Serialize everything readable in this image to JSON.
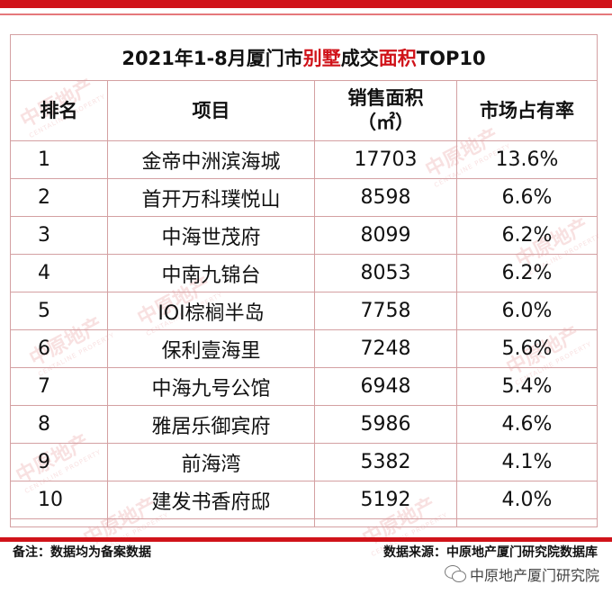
{
  "title": {
    "part1": "2021年1-8月厦门市",
    "part2": "别墅",
    "part3": "成交",
    "part4": "面积",
    "part5": "TOP10"
  },
  "headers": {
    "rank": "排名",
    "project": "项目",
    "area": "销售面积",
    "unit": "（㎡）",
    "share": "市场占有率"
  },
  "rows": [
    {
      "rank": "1",
      "project": "金帝中洲滨海城",
      "area": "17703",
      "share": "13.6%"
    },
    {
      "rank": "2",
      "project": "首开万科璞悦山",
      "area": "8598",
      "share": "6.6%"
    },
    {
      "rank": "3",
      "project": "中海世茂府",
      "area": "8099",
      "share": "6.2%"
    },
    {
      "rank": "4",
      "project": "中南九锦台",
      "area": "8053",
      "share": "6.2%"
    },
    {
      "rank": "5",
      "project": "IOI棕榈半岛",
      "area": "7758",
      "share": "6.0%"
    },
    {
      "rank": "6",
      "project": "保利壹海里",
      "area": "7248",
      "share": "5.6%"
    },
    {
      "rank": "7",
      "project": "中海九号公馆",
      "area": "6948",
      "share": "5.4%"
    },
    {
      "rank": "8",
      "project": "雅居乐御宾府",
      "area": "5986",
      "share": "4.6%"
    },
    {
      "rank": "9",
      "project": "前海湾",
      "area": "5382",
      "share": "4.1%"
    },
    {
      "rank": "10",
      "project": "建发书香府邸",
      "area": "5192",
      "share": "4.0%"
    }
  ],
  "footer": {
    "note": "备注：数据均为备案数据",
    "source": "数据来源：中原地产厦门研究院数据库"
  },
  "brand": {
    "name": "中原地产厦门研究院",
    "icon": "wechat-icon"
  },
  "watermark": {
    "text": "中原地产",
    "sub": "CENTALINE PROPERTY"
  },
  "colors": {
    "accent": "#d0131a",
    "border": "#d4a0a2",
    "watermark": "#f3c9ca"
  }
}
